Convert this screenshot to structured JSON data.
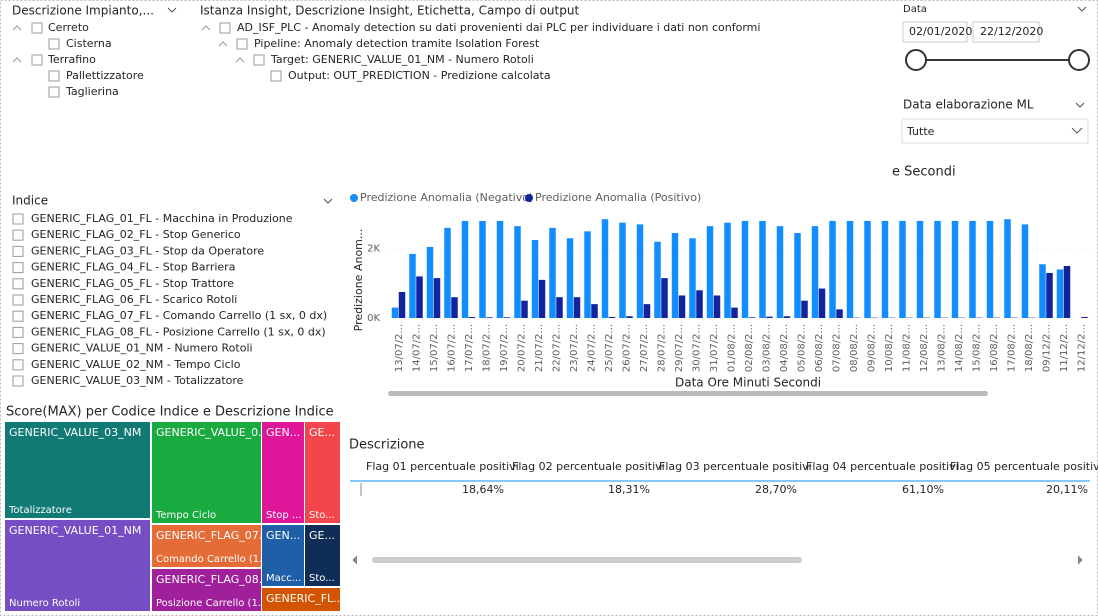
{
  "slicer_impianto": {
    "title": "Descrizione Impianto,...",
    "items": [
      {
        "label": "Cerreto",
        "children": [
          "Cisterna"
        ]
      },
      {
        "label": "Terrafino",
        "children": [
          "Pallettizzatore",
          "Taglierina"
        ]
      }
    ]
  },
  "slicer_istanza": {
    "title": "Istanza Insight, Descrizione Insight, Etichetta, Campo di output",
    "items": [
      "AD_ISF_PLC - Anomaly detection su dati provenienti dai PLC per individuare i dati non conformi",
      "Pipeline: Anomaly detection tramite Isolation Forest",
      "Target: GENERIC_VALUE_01_NM - Numero Rotoli",
      "Output: OUT_PREDICTION - Predizione calcolata"
    ]
  },
  "date_slicer": {
    "title": "Data",
    "start": "02/01/2020",
    "end": "22/12/2020"
  },
  "dropdown": {
    "title": "Data elaborazione ML",
    "value": "Tutte"
  },
  "slicer_indice": {
    "title": "Indice",
    "items": [
      "GENERIC_FLAG_01_FL - Macchina in Produzione",
      "GENERIC_FLAG_02_FL - Stop Generico",
      "GENERIC_FLAG_03_FL - Stop da Operatore",
      "GENERIC_FLAG_04_FL - Stop Barriera",
      "GENERIC_FLAG_05_FL - Stop Trattore",
      "GENERIC_FLAG_06_FL - Scarico Rotoli",
      "GENERIC_FLAG_07_FL - Comando Carrello (1 sx, 0 dx)",
      "GENERIC_FLAG_08_FL - Posizione Carrello (1 sx, 0 dx)",
      "GENERIC_VALUE_01_NM - Numero Rotoli",
      "GENERIC_VALUE_02_NM - Tempo Ciclo",
      "GENERIC_VALUE_03_NM - Totalizzatore"
    ]
  },
  "chart_data": {
    "type": "bar",
    "title": "e Secondi",
    "y_label": "Predizione Anom...",
    "x_label": "Data Ore Minuti Secondi",
    "categories": [
      "13/07/2...",
      "14/07/2...",
      "15/07/2...",
      "16/07/2...",
      "17/07/2...",
      "18/07/2...",
      "19/07/2...",
      "20/07/2...",
      "21/07/2...",
      "22/07/2...",
      "23/07/2...",
      "24/07/2...",
      "25/07/2...",
      "26/07/2...",
      "27/07/2...",
      "28/07/2...",
      "29/07/2...",
      "30/07/2...",
      "31/07/2...",
      "01/08/2...",
      "02/08/2...",
      "03/08/2...",
      "04/08/2...",
      "05/08/2...",
      "06/08/2...",
      "07/08/2...",
      "08/08/2...",
      "09/08/2...",
      "10/08/2...",
      "11/08/2...",
      "12/08/2...",
      "13/08/2...",
      "14/08/2...",
      "15/08/2...",
      "16/08/2...",
      "17/08/2...",
      "18/08/2...",
      "09/12/2...",
      "11/12/2...",
      "12/12/2..."
    ],
    "series": [
      {
        "name": "Predizione Anomalia (Negativo)",
        "color": "#118dff",
        "values": [
          300,
          1850,
          2050,
          2600,
          2800,
          2800,
          2800,
          2650,
          2250,
          2600,
          2300,
          2500,
          2850,
          2750,
          2700,
          2200,
          2450,
          2300,
          2650,
          2750,
          2800,
          2800,
          2650,
          2450,
          2650,
          2800,
          2800,
          2800,
          2800,
          2800,
          2800,
          2800,
          2800,
          2800,
          2800,
          2850,
          2700,
          1550,
          1400,
          0
        ]
      },
      {
        "name": "Predizione Anomalia (Positivo)",
        "color": "#12239e",
        "values": [
          750,
          1200,
          1150,
          600,
          30,
          20,
          20,
          500,
          1100,
          600,
          600,
          400,
          30,
          50,
          400,
          1150,
          650,
          800,
          650,
          300,
          20,
          40,
          50,
          500,
          850,
          250,
          10,
          10,
          10,
          10,
          10,
          10,
          10,
          10,
          10,
          10,
          10,
          1300,
          1500,
          30
        ]
      }
    ],
    "ylim": [
      0,
      3000
    ],
    "yticks": [
      {
        "value": 0,
        "label": "0K"
      },
      {
        "value": 2000,
        "label": "2K"
      }
    ]
  },
  "treemap": {
    "title": "Score(MAX) per Codice Indice e Descrizione Indice",
    "tiles": [
      {
        "label": "GENERIC_VALUE_03_NM",
        "sublabel": "Totalizzatore",
        "color": "#117a75"
      },
      {
        "label": "GENERIC_VALUE_01_NM",
        "sublabel": "Numero Rotoli",
        "color": "#744ec2"
      },
      {
        "label": "GENERIC_VALUE_0...",
        "sublabel": "Tempo Ciclo",
        "color": "#1aab40"
      },
      {
        "label": "GENERIC_FLAG_07...",
        "sublabel": "Comando Carrello (1...",
        "color": "#e66c37"
      },
      {
        "label": "GENERIC_FLAG_08...",
        "sublabel": "Posizione Carrello (1...",
        "color": "#a0209b"
      },
      {
        "label": "GEN...",
        "sublabel": "Stop ...",
        "color": "#e0169a"
      },
      {
        "label": "GE...",
        "sublabel": "Sto...",
        "color": "#f2464a"
      },
      {
        "label": "GEN...",
        "sublabel": "Macc...",
        "color": "#1f5fa8"
      },
      {
        "label": "GE...",
        "sublabel": "Sto...",
        "color": "#0f2d57"
      },
      {
        "label": "GENERIC_FL...",
        "sublabel": null,
        "color": "#d35400"
      }
    ]
  },
  "table": {
    "title": "Descrizione",
    "headers": [
      "Flag 01 percentuale positivi",
      "Flag 02 percentuale positivi",
      "Flag 03 percentuale positivi",
      "Flag 04 percentuale positivi",
      "Flag 05 percentuale positivi"
    ],
    "rows": [
      [
        "18,64%",
        "18,31%",
        "28,70%",
        "61,10%",
        "20,11%"
      ]
    ]
  }
}
